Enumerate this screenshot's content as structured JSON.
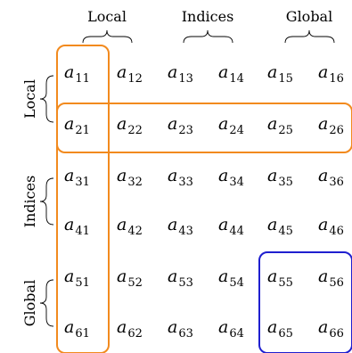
{
  "column_groups": [
    "Local",
    "Indices",
    "Global"
  ],
  "row_groups": [
    "Local",
    "Indices",
    "Global"
  ],
  "matrix": {
    "variable": "a",
    "rows": [
      [
        "11",
        "12",
        "13",
        "14",
        "15",
        "16"
      ],
      [
        "21",
        "22",
        "23",
        "24",
        "25",
        "26"
      ],
      [
        "31",
        "32",
        "33",
        "34",
        "35",
        "36"
      ],
      [
        "41",
        "42",
        "43",
        "44",
        "45",
        "46"
      ],
      [
        "51",
        "52",
        "53",
        "54",
        "55",
        "56"
      ],
      [
        "61",
        "62",
        "63",
        "64",
        "65",
        "66"
      ]
    ]
  },
  "highlights": [
    {
      "name": "first-column-box",
      "color": "#f28a1e",
      "rows": [
        1,
        6
      ],
      "cols": [
        1,
        1
      ]
    },
    {
      "name": "second-row-box",
      "color": "#f28a1e",
      "rows": [
        2,
        2
      ],
      "cols": [
        1,
        6
      ]
    },
    {
      "name": "global-global-block",
      "color": "#1f1fcf",
      "rows": [
        5,
        6
      ],
      "cols": [
        5,
        6
      ]
    }
  ]
}
